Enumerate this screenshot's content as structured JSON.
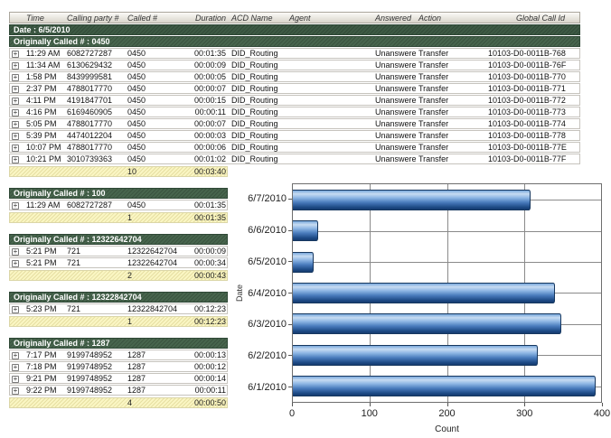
{
  "report": {
    "columns": [
      "",
      "Time",
      "Calling party #",
      "Called #",
      "Duration",
      "ACD Name",
      "Agent",
      "Answered",
      "Action",
      "Global Call Id"
    ],
    "date_band": "Date : 6/5/2010",
    "groups": [
      {
        "title": "Originally Called # : 0450",
        "full": true,
        "rows": [
          {
            "time": "11:29 AM",
            "calling": "6082727287",
            "called": "0450",
            "duration": "00:01:35",
            "acd": "DID_Routing",
            "agent": "",
            "answered": "Unanswered",
            "action": "Transfer",
            "global_call_id": "10103-D0-0011B-768"
          },
          {
            "time": "11:34 AM",
            "calling": "6130629432",
            "called": "0450",
            "duration": "00:00:09",
            "acd": "DID_Routing",
            "agent": "",
            "answered": "Unanswered",
            "action": "Transfer",
            "global_call_id": "10103-D0-0011B-76F"
          },
          {
            "time": "1:58 PM",
            "calling": "8439999581",
            "called": "0450",
            "duration": "00:00:05",
            "acd": "DID_Routing",
            "agent": "",
            "answered": "Unanswered",
            "action": "Transfer",
            "global_call_id": "10103-D0-0011B-770"
          },
          {
            "time": "2:37 PM",
            "calling": "4788017770",
            "called": "0450",
            "duration": "00:00:07",
            "acd": "DID_Routing",
            "agent": "",
            "answered": "Unanswered",
            "action": "Transfer",
            "global_call_id": "10103-D0-0011B-771"
          },
          {
            "time": "4:11 PM",
            "calling": "4191847701",
            "called": "0450",
            "duration": "00:00:15",
            "acd": "DID_Routing",
            "agent": "",
            "answered": "Unanswered",
            "action": "Transfer",
            "global_call_id": "10103-D0-0011B-772"
          },
          {
            "time": "4:16 PM",
            "calling": "6169460905",
            "called": "0450",
            "duration": "00:00:11",
            "acd": "DID_Routing",
            "agent": "",
            "answered": "Unanswered",
            "action": "Transfer",
            "global_call_id": "10103-D0-0011B-773"
          },
          {
            "time": "5:05 PM",
            "calling": "4788017770",
            "called": "0450",
            "duration": "00:00:07",
            "acd": "DID_Routing",
            "agent": "",
            "answered": "Unanswered",
            "action": "Transfer",
            "global_call_id": "10103-D0-0011B-774"
          },
          {
            "time": "5:39 PM",
            "calling": "4474012204",
            "called": "0450",
            "duration": "00:00:03",
            "acd": "DID_Routing",
            "agent": "",
            "answered": "Unanswered",
            "action": "Transfer",
            "global_call_id": "10103-D0-0011B-778"
          },
          {
            "time": "10:07 PM",
            "calling": "4788017770",
            "called": "0450",
            "duration": "00:00:06",
            "acd": "DID_Routing",
            "agent": "",
            "answered": "Unanswered",
            "action": "Transfer",
            "global_call_id": "10103-D0-0011B-77E"
          },
          {
            "time": "10:21 PM",
            "calling": "3010739363",
            "called": "0450",
            "duration": "00:01:02",
            "acd": "DID_Routing",
            "agent": "",
            "answered": "Unanswered",
            "action": "Transfer",
            "global_call_id": "10103-D0-0011B-77F"
          }
        ],
        "summary": {
          "count": "10",
          "duration": "00:03:40"
        }
      },
      {
        "title": "Originally Called # : 100",
        "full": false,
        "rows": [
          {
            "time": "11:29 AM",
            "calling": "6082727287",
            "called": "0450",
            "duration": "00:01:35"
          }
        ],
        "summary": {
          "count": "1",
          "duration": "00:01:35"
        }
      },
      {
        "title": "Originally Called # : 12322642704",
        "full": false,
        "rows": [
          {
            "time": "5:21 PM",
            "calling": "721",
            "called": "12322642704",
            "duration": "00:00:09"
          },
          {
            "time": "5:21 PM",
            "calling": "721",
            "called": "12322642704",
            "duration": "00:00:34"
          }
        ],
        "summary": {
          "count": "2",
          "duration": "00:00:43"
        }
      },
      {
        "title": "Originally Called # : 12322842704",
        "full": false,
        "rows": [
          {
            "time": "5:23 PM",
            "calling": "721",
            "called": "12322842704",
            "duration": "00:12:23"
          }
        ],
        "summary": {
          "count": "1",
          "duration": "00:12:23"
        }
      },
      {
        "title": "Originally Called # : 1287",
        "full": false,
        "rows": [
          {
            "time": "7:17 PM",
            "calling": "9199748952",
            "called": "1287",
            "duration": "00:00:13"
          },
          {
            "time": "7:18 PM",
            "calling": "9199748952",
            "called": "1287",
            "duration": "00:00:12"
          },
          {
            "time": "9:21 PM",
            "calling": "9199748952",
            "called": "1287",
            "duration": "00:00:14"
          },
          {
            "time": "9:22 PM",
            "calling": "9199748952",
            "called": "1287",
            "duration": "00:00:11"
          }
        ],
        "summary": {
          "count": "4",
          "duration": "00:00:50"
        }
      }
    ]
  },
  "chart_data": {
    "type": "bar",
    "orientation": "horizontal",
    "categories": [
      "6/7/2010",
      "6/6/2010",
      "6/5/2010",
      "6/4/2010",
      "6/3/2010",
      "6/2/2010",
      "6/1/2010"
    ],
    "values": [
      308,
      33,
      27,
      340,
      348,
      318,
      393
    ],
    "xlabel": "Count",
    "ylabel": "Date",
    "xlim": [
      0,
      400
    ],
    "xticks": [
      0,
      100,
      200,
      300,
      400
    ],
    "grid": true,
    "legend": false,
    "bar_color": "#4d86c8",
    "bar_border_color": "#16375f"
  }
}
